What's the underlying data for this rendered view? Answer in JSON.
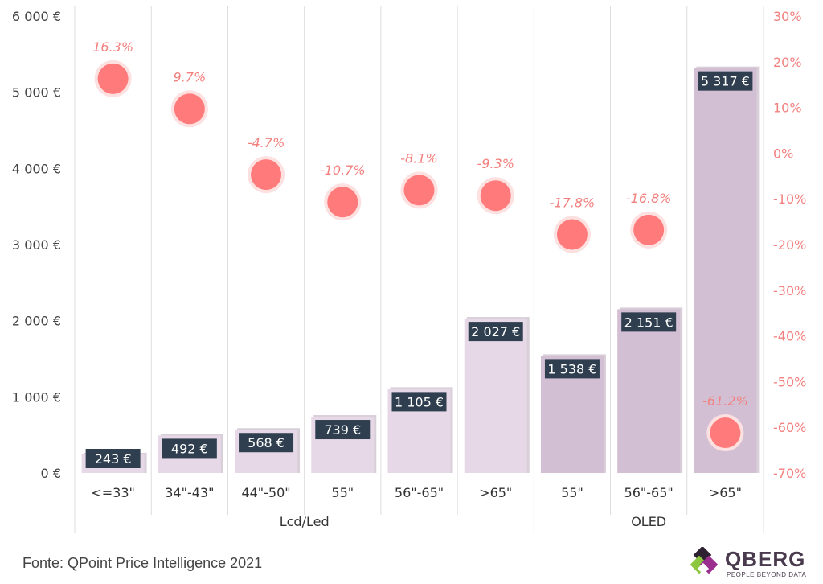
{
  "chart_data": {
    "type": "bar",
    "categories": [
      "<=33\"",
      "34\"-43\"",
      "44\"-50\"",
      "55\"",
      "56\"-65\"",
      ">65\"",
      "55\"",
      "56\"-65\"",
      ">65\""
    ],
    "groups": [
      {
        "label": "Lcd/Led",
        "start": 0,
        "end": 5
      },
      {
        "label": "OLED",
        "start": 6,
        "end": 8
      }
    ],
    "series": [
      {
        "axis": "left",
        "kind": "bar",
        "values": [
          243,
          492,
          568,
          739,
          1105,
          2027,
          1538,
          2151,
          5317
        ],
        "value_labels": [
          "243 €",
          "492 €",
          "568 €",
          "739 €",
          "1 105 €",
          "2 027 €",
          "1 538 €",
          "2 151 €",
          "5 317 €"
        ]
      },
      {
        "axis": "right",
        "kind": "scatter",
        "values": [
          16.3,
          9.7,
          -4.7,
          -10.7,
          -8.1,
          -9.3,
          -17.8,
          -16.8,
          -61.2
        ],
        "value_labels": [
          "16.3%",
          "9.7%",
          "-4.7%",
          "-10.7%",
          "-8.1%",
          "-9.3%",
          "-17.8%",
          "-16.8%",
          "-61.2%"
        ]
      }
    ],
    "y_left": {
      "ylim": [
        0,
        6000
      ],
      "ticks": [
        0,
        1000,
        2000,
        3000,
        4000,
        5000,
        6000
      ],
      "tick_labels": [
        "0 €",
        "1 000 €",
        "2 000 €",
        "3 000 €",
        "4 000 €",
        "5 000 €",
        "6 000 €"
      ]
    },
    "y_right": {
      "ylim": [
        -70,
        30
      ],
      "ticks": [
        -70,
        -60,
        -50,
        -40,
        -30,
        -20,
        -10,
        0,
        10,
        20,
        30
      ],
      "tick_labels": [
        "-70%",
        "-60%",
        "-50%",
        "-40%",
        "-30%",
        "-20%",
        "-10%",
        "0%",
        "10%",
        "20%",
        "30%"
      ]
    },
    "grid": "vertical-category-separators",
    "title": "",
    "xlabel": "",
    "ylabel": ""
  },
  "colors": {
    "bar_lcd": "#e6d8e6",
    "bar_oled": "#d3bfd3",
    "bar_shadow": "#b8a8b8",
    "label_bg": "#2f3f4f",
    "marker": "#ff7b7b",
    "marker_halo": "#fde0e0",
    "pct_text": "#f2807e",
    "grid": "#dddddd"
  },
  "footer": {
    "source": "Fonte: QPoint Price Intelligence 2021"
  },
  "logo": {
    "name": "QBERG",
    "tagline": "PEOPLE BEYOND DATA"
  }
}
